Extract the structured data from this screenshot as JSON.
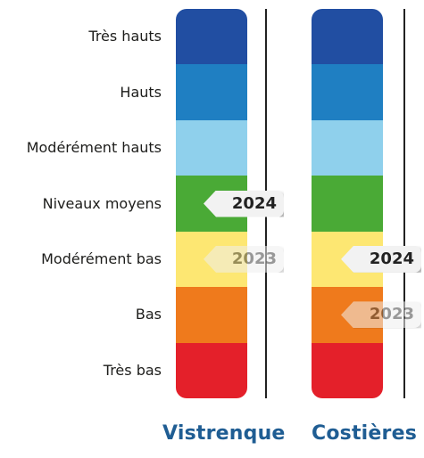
{
  "chart_data": {
    "type": "table",
    "levels": [
      "Très hauts",
      "Hauts",
      "Modérément hauts",
      "Niveaux moyens",
      "Modérément bas",
      "Bas",
      "Très bas"
    ],
    "level_colors": [
      "#214ea2",
      "#1f7fc2",
      "#8fd0ec",
      "#4aaa36",
      "#fde772",
      "#ef7a1c",
      "#e4202a"
    ],
    "columns": [
      {
        "name": "Vistrenque",
        "markers": [
          {
            "label": "2024",
            "level": "Niveaux moyens",
            "faded": false
          },
          {
            "label": "2023",
            "level": "Modérément bas",
            "faded": true
          }
        ]
      },
      {
        "name": "Costières",
        "markers": [
          {
            "label": "2024",
            "level": "Modérément bas",
            "faded": false
          },
          {
            "label": "2023",
            "level": "Bas",
            "faded": true
          }
        ]
      }
    ],
    "title_color": "#1f5d93"
  }
}
